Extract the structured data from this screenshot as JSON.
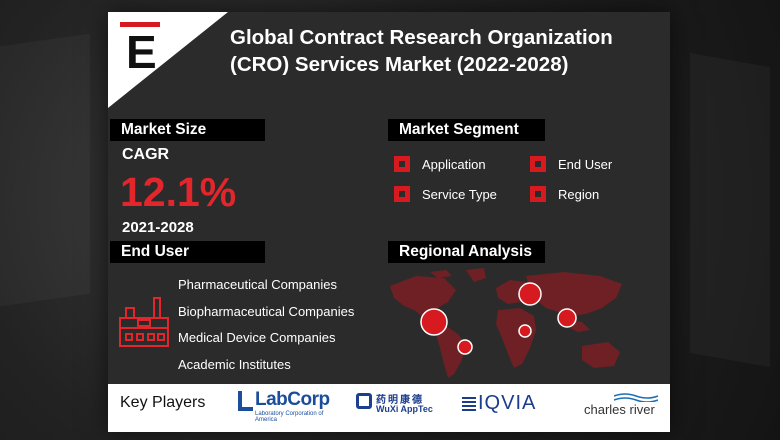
{
  "header": {
    "logo_letter": "E",
    "title": "Global Contract Research Organization (CRO) Services Market (2022-2028)"
  },
  "market_size": {
    "heading": "Market Size",
    "cagr_label": "CAGR",
    "cagr_value": "12.1%",
    "period": "2021-2028"
  },
  "market_segment": {
    "heading": "Market Segment",
    "items": [
      "Application",
      "End User",
      "Service Type",
      "Region"
    ]
  },
  "end_user": {
    "heading": "End User",
    "icon": "factory-icon",
    "items": [
      "Pharmaceutical Companies",
      "Biopharmaceutical Companies",
      "Medical Device Companies",
      "Academic Institutes"
    ]
  },
  "regional": {
    "heading": "Regional Analysis",
    "icon": "world-map-icon"
  },
  "key_players": {
    "label": "Key Players",
    "logos": {
      "labcorp": "LabCorp",
      "labcorp_tagline": "Laboratory Corporation of America",
      "wuxi_cn": "药明康德",
      "wuxi_en": "WuXi AppTec",
      "iqvia": "IQVIA",
      "charles_river": "charles river"
    }
  },
  "colors": {
    "accent": "#d71920",
    "cagr": "#e3262b",
    "panel": "#2b2b2b",
    "heading_bg": "#000000",
    "map_land": "#6e2024"
  }
}
